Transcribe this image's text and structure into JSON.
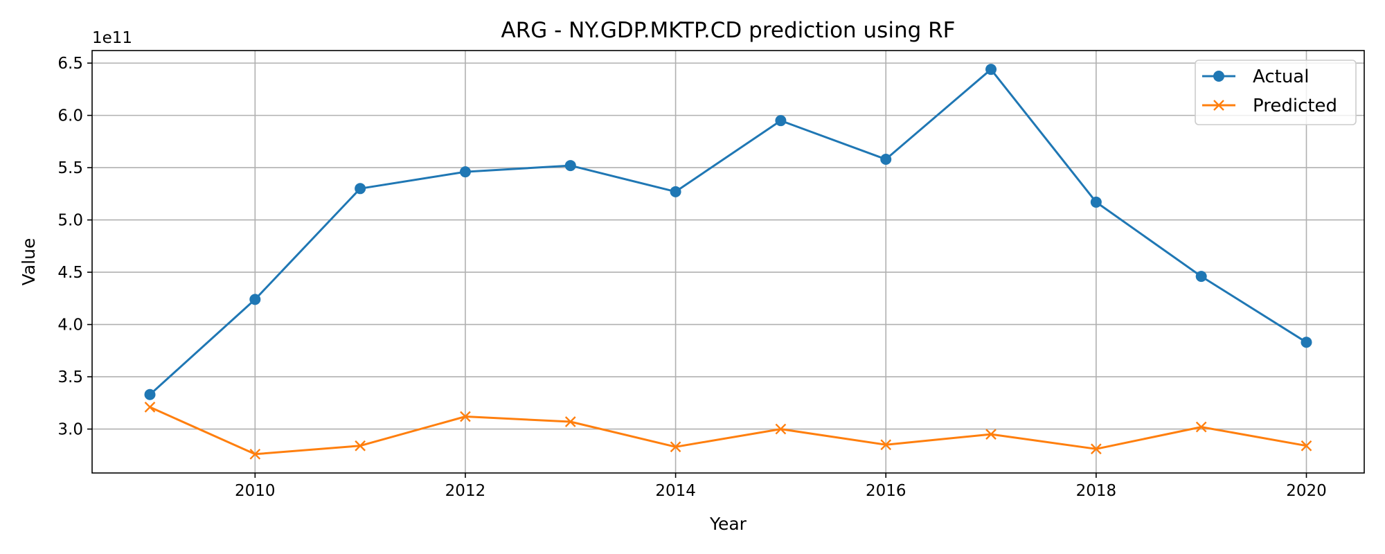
{
  "chart_data": {
    "type": "line",
    "title": "ARG - NY.GDP.MKTP.CD prediction using RF",
    "xlabel": "Year",
    "ylabel": "Value",
    "y_offset_label": "1e11",
    "x": [
      2009,
      2010,
      2011,
      2012,
      2013,
      2014,
      2015,
      2016,
      2017,
      2018,
      2019,
      2020
    ],
    "x_ticks": [
      2010,
      2012,
      2014,
      2016,
      2018,
      2020
    ],
    "y_ticks": [
      3.0,
      3.5,
      4.0,
      4.5,
      5.0,
      5.5,
      6.0,
      6.5
    ],
    "y_tick_labels": [
      "3.0",
      "3.5",
      "4.0",
      "4.5",
      "5.0",
      "5.5",
      "6.0",
      "6.5"
    ],
    "xlim": [
      2008.45,
      2020.55
    ],
    "ylim": [
      2.58,
      6.62
    ],
    "y_scale": "×1e11",
    "grid": true,
    "legend_position": "top-right",
    "series": [
      {
        "name": "Actual",
        "marker": "circle",
        "color": "#1f77b4",
        "values": [
          3.33,
          4.24,
          5.3,
          5.46,
          5.52,
          5.27,
          5.95,
          5.58,
          6.44,
          5.17,
          4.46,
          3.83
        ]
      },
      {
        "name": "Predicted",
        "marker": "x",
        "color": "#ff7f0e",
        "values": [
          3.21,
          2.76,
          2.84,
          3.12,
          3.07,
          2.83,
          3.0,
          2.85,
          2.95,
          2.81,
          3.02,
          2.84
        ]
      }
    ]
  }
}
